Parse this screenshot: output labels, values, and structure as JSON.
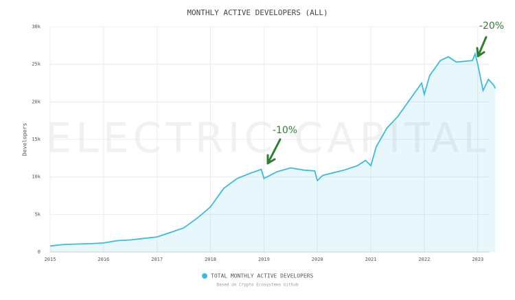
{
  "chart_data": {
    "type": "area",
    "title": "MONTHLY ACTIVE DEVELOPERS (ALL)",
    "y_label": "Developers",
    "watermark": "ELECTRIC CAPITAL",
    "note": "Based on Crypto Ecosystems Github",
    "annotations": [
      "-10%",
      "-20%"
    ],
    "x": [
      2015.0,
      2015.25,
      2015.5,
      2015.75,
      2016.0,
      2016.25,
      2016.5,
      2016.75,
      2017.0,
      2017.25,
      2017.5,
      2017.75,
      2018.0,
      2018.25,
      2018.5,
      2018.75,
      2018.95,
      2019.0,
      2019.25,
      2019.5,
      2019.75,
      2019.95,
      2020.0,
      2020.1,
      2020.5,
      2020.75,
      2020.9,
      2021.0,
      2021.1,
      2021.3,
      2021.5,
      2021.75,
      2021.95,
      2022.0,
      2022.1,
      2022.3,
      2022.45,
      2022.6,
      2022.9,
      2022.95,
      2023.0,
      2023.1,
      2023.2,
      2023.3,
      2023.33
    ],
    "series": [
      {
        "name": "TOTAL MONTHLY ACTIVE DEVELOPERS",
        "color": "#3bbbe0",
        "values": [
          800,
          1000,
          1050,
          1100,
          1200,
          1500,
          1600,
          1800,
          2000,
          2600,
          3200,
          4500,
          6000,
          8500,
          9800,
          10500,
          11000,
          9800,
          10700,
          11200,
          10900,
          10800,
          9500,
          10200,
          10900,
          11500,
          12200,
          11500,
          14000,
          16500,
          18000,
          20500,
          22500,
          21000,
          23500,
          25500,
          26000,
          25300,
          25500,
          26400,
          25000,
          21500,
          23000,
          22200,
          21800
        ]
      }
    ],
    "xlim": [
      2015,
      2023.35
    ],
    "xticks": [
      2015,
      2016,
      2017,
      2018,
      2019,
      2020,
      2021,
      2022,
      2023
    ],
    "ylim": [
      0,
      30000
    ],
    "yticks": [
      0,
      {
        "value": 5000,
        "label": "5k"
      },
      {
        "value": 10000,
        "label": "10k"
      },
      {
        "value": 15000,
        "label": "15k"
      },
      {
        "value": 20000,
        "label": "20k"
      },
      {
        "value": 25000,
        "label": "25k"
      },
      {
        "value": 30000,
        "label": "30k"
      }
    ],
    "grid": true
  }
}
